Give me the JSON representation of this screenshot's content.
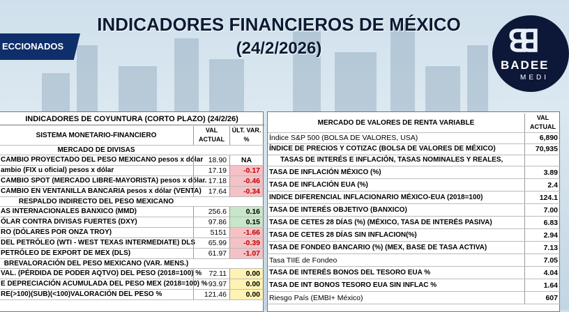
{
  "page": {
    "title": "INDICADORES FINANCIEROS DE MÉXICO",
    "date": "(24/2/2026)",
    "ribbon": "ECCIONADOS",
    "logo_name": "BADEE",
    "logo_sub": "MEDI"
  },
  "left": {
    "title": "INDICADORES DE COYUNTURA (CORTO PLAZO) (24/2/26)",
    "section": "SISTEMA MONETARIO-FINANCIERO",
    "col_val": "VAL ACTUAL",
    "col_var": "ÚLT. VAR. %",
    "sub_divisas": "MERCADO DE DIVISAS",
    "sub_respaldo": "RESPALDO INDIRECTO DEL PESO MEXICANO",
    "sub_sobre": "BREVALORACIÓN DEL PESO MEXICANO (VAR. MENS.)",
    "rows": [
      {
        "label": "CAMBIO PROYECTADO DEL PESO MEXICANO pesos x dólar",
        "val": "18.90",
        "var": "NA"
      },
      {
        "label": "ambio (FIX u oficial) pesos x dólar",
        "val": "17.19",
        "var": "-0.17"
      },
      {
        "label": "CAMBIO SPOT (MERCADO LIBRE-MAYORISTA) pesos x dólar.",
        "val": "17.18",
        "var": "-0.46"
      },
      {
        "label": "CAMBIO EN VENTANILLA BANCARIA pesos x dólar (VENTA)",
        "val": "17.64",
        "var": "-0.34"
      },
      {
        "label": "AS INTERNACIONALES BANXICO (MMD)",
        "val": "256.6",
        "var": "0.16"
      },
      {
        "label": "ÓLAR CONTRA DIVISAS FUERTES (DXY)",
        "val": "97.86",
        "var": "0.15"
      },
      {
        "label": "RO (DÓLARES POR ONZA TROY)",
        "val": "5151",
        "var": "-1.66"
      },
      {
        "label": "DEL PETRÓLEO (WTI - WEST TEXAS INTERMEDIATE) DLS",
        "val": "65.99",
        "var": "-0.39"
      },
      {
        "label": "PETRÓLEO DE EXPORT DE MEX (DLS)",
        "val": "61.97",
        "var": "-1.07"
      },
      {
        "label": "VAL. (PÉRDIDA DE PODER AQTVO) DEL PESO (2018=100) %",
        "val": "72.11",
        "var": "0.00"
      },
      {
        "label": "E DEPRECIACIÓN ACUMULADA DEL PESO MEX (2018=100) %",
        "val": "93.97",
        "var": "0.00"
      },
      {
        "label": "RE(>100)(SUB)(<100)VALORACIÓN DEL PESO  %",
        "val": "121.46",
        "var": "0.00"
      }
    ]
  },
  "right": {
    "title": "MERCADO DE VALORES DE RENTA VARIABLE",
    "col_val": "VAL ACTUAL",
    "rows": [
      {
        "label": "Índice S&P 500 (BOLSA DE VALORES, USA)",
        "val": "6,890"
      },
      {
        "label": "ÍNDICE DE PRECIOS Y COTIZAC (BOLSA DE VALORES DE MÉXICO)",
        "val": "70,935"
      },
      {
        "label": "TASAS DE INTERÉS E INFLACIÓN, TASAS NOMINALES Y REALES,",
        "val": ""
      },
      {
        "label": "TASA DE INFLACIÓN MÉXICO (%)",
        "val": "3.89"
      },
      {
        "label": "TASA DE INFLACIÓN EUA (%)",
        "val": "2.4"
      },
      {
        "label": "INDICE DIFERENCIAL INFLACIONARIO MÉXICO-EUA (2018=100)",
        "val": "124.1"
      },
      {
        "label": "TASA DE INTERÉS OBJETIVO (BANXICO)",
        "val": "7.00"
      },
      {
        "label": "TASA DE CETES 28 DÍAS (%) (MÉXICO, TASA DE INTERÉS PASIVA)",
        "val": "6.83"
      },
      {
        "label": "TASA DE CETES 28 DÍAS SIN INFLACION(%)",
        "val": "2.94"
      },
      {
        "label": "TASA DE FONDEO BANCARIO (%) (MEX, BASE DE TASA ACTIVA)",
        "val": "7.13"
      },
      {
        "label": "Tasa TIIE de Fondeo",
        "val": "7.05"
      },
      {
        "label": "TASA DE INTERÉS BONOS DEL TESORO EUA %",
        "val": "4.04"
      },
      {
        "label": "TASA DE INT BONOS TESORO EUA SIN INFLAC %",
        "val": "1.64"
      },
      {
        "label": "Riesgo País (EMBI+ México)",
        "val": "607"
      }
    ]
  }
}
